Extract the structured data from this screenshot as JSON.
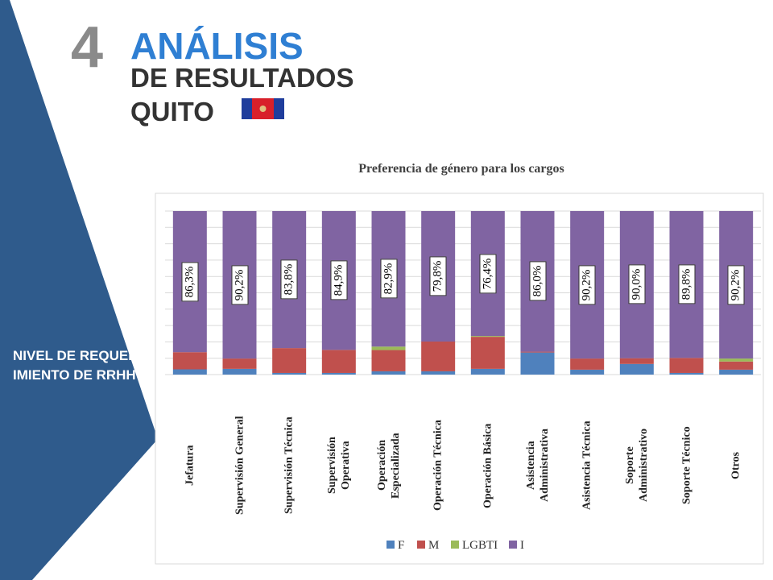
{
  "header": {
    "number": "4",
    "title": "ANÁLISIS",
    "subtitle": "DE RESULTADOS",
    "city": "QUITO",
    "side_text": "NIVEL DE REQUERIMIENTO DE RRHH"
  },
  "chart_data": {
    "type": "bar",
    "stacked": true,
    "title": "Preferencia de género para los cargos",
    "categories": [
      "Jefatura",
      "Supervisión General",
      "Supervisión Técnica",
      "Supervisión\nOperativa",
      "Operación\nEspecializada",
      "Operación Técnica",
      "Operación Básica",
      "Asistencia\nAdministrativa",
      "Asistencia Técnica",
      "Soporte\nAdministrativo",
      "Soporte Técnico",
      "Otros"
    ],
    "series": [
      {
        "name": "F",
        "color": "#4f81bd",
        "values": [
          3.2,
          3.5,
          1,
          1,
          2,
          2,
          3.5,
          13.5,
          3,
          6.5,
          1,
          3
        ]
      },
      {
        "name": "M",
        "color": "#c0504d",
        "values": [
          10.5,
          6.3,
          15.2,
          14.1,
          13,
          18.2,
          19.6,
          0.5,
          6.8,
          3.5,
          9.2,
          5
        ]
      },
      {
        "name": "LGBTI",
        "color": "#9bbb59",
        "values": [
          0,
          0,
          0,
          0,
          2.1,
          0,
          0.5,
          0,
          0,
          0,
          0,
          1.8
        ]
      },
      {
        "name": "I",
        "color": "#8064a2",
        "values": [
          86.3,
          90.2,
          83.8,
          84.9,
          82.9,
          79.8,
          76.4,
          86.0,
          90.2,
          90.0,
          89.8,
          90.2
        ],
        "value_labels": [
          "86,3%",
          "90,2%",
          "83,8%",
          "84,9%",
          "82,9%",
          "79,8%",
          "76,4%",
          "86,0%",
          "90,2%",
          "90,0%",
          "89,8%",
          "90,2%"
        ]
      }
    ],
    "ylim": [
      0,
      100
    ],
    "yticks": [
      0,
      10,
      20,
      30,
      40,
      50,
      60,
      70,
      80,
      90,
      100
    ],
    "grid": true,
    "legend": "bottom"
  }
}
